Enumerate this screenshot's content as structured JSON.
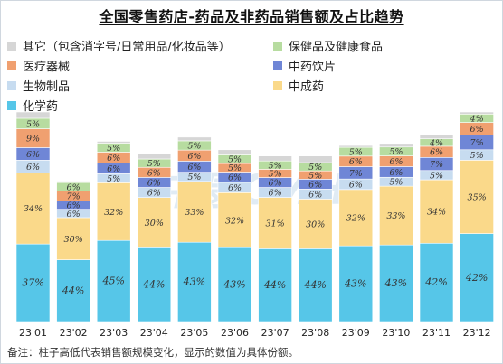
{
  "title": "全国零售药店-药品及非药品销售额及占比趋势",
  "footnote": "备注：柱子高低代表销售额规模变化，显示的数值为具体份额。",
  "watermark": "中康CMH",
  "chart_data": {
    "type": "bar",
    "stacked": true,
    "categories": [
      "23'01",
      "23'02",
      "23'03",
      "23'04",
      "23'05",
      "23'06",
      "23'07",
      "23'08",
      "23'09",
      "23'10",
      "23'11",
      "23'12"
    ],
    "relative_sales_scale": [
      100,
      67,
      86,
      80,
      88,
      82,
      79,
      79,
      84,
      85,
      89,
      100
    ],
    "series": [
      {
        "name": "化学药",
        "color": "#56c6e8",
        "values": [
          37,
          44,
          45,
          44,
          43,
          43,
          44,
          44,
          43,
          43,
          42,
          42
        ]
      },
      {
        "name": "中成药",
        "color": "#fad98a",
        "values": [
          34,
          30,
          32,
          30,
          33,
          32,
          31,
          30,
          32,
          33,
          34,
          35
        ]
      },
      {
        "name": "生物制品",
        "color": "#c7dcf0",
        "values": [
          6,
          6,
          5,
          6,
          5,
          6,
          6,
          6,
          6,
          5,
          5,
          5
        ]
      },
      {
        "name": "中药饮片",
        "color": "#6f86d6",
        "values": [
          6,
          6,
          6,
          6,
          6,
          6,
          6,
          6,
          7,
          6,
          7,
          7
        ]
      },
      {
        "name": "医疗器械",
        "color": "#f0a070",
        "values": [
          9,
          7,
          6,
          6,
          6,
          5,
          5,
          5,
          6,
          6,
          6,
          6
        ]
      },
      {
        "name": "保健品及健康食品",
        "color": "#b7dca0",
        "values": [
          5,
          6,
          5,
          5,
          5,
          5,
          5,
          5,
          5,
          5,
          4,
          4
        ]
      },
      {
        "name": "其它（包含消字号/日常用品/化妆品等）",
        "color": "#d6d6d6",
        "values": [
          3,
          1,
          1,
          3,
          2,
          3,
          3,
          4,
          1,
          2,
          2,
          1
        ]
      }
    ],
    "legend_position": "top",
    "axis_line": "bottom only",
    "grid": false,
    "data_labels": "percent, italic, inside segments"
  }
}
